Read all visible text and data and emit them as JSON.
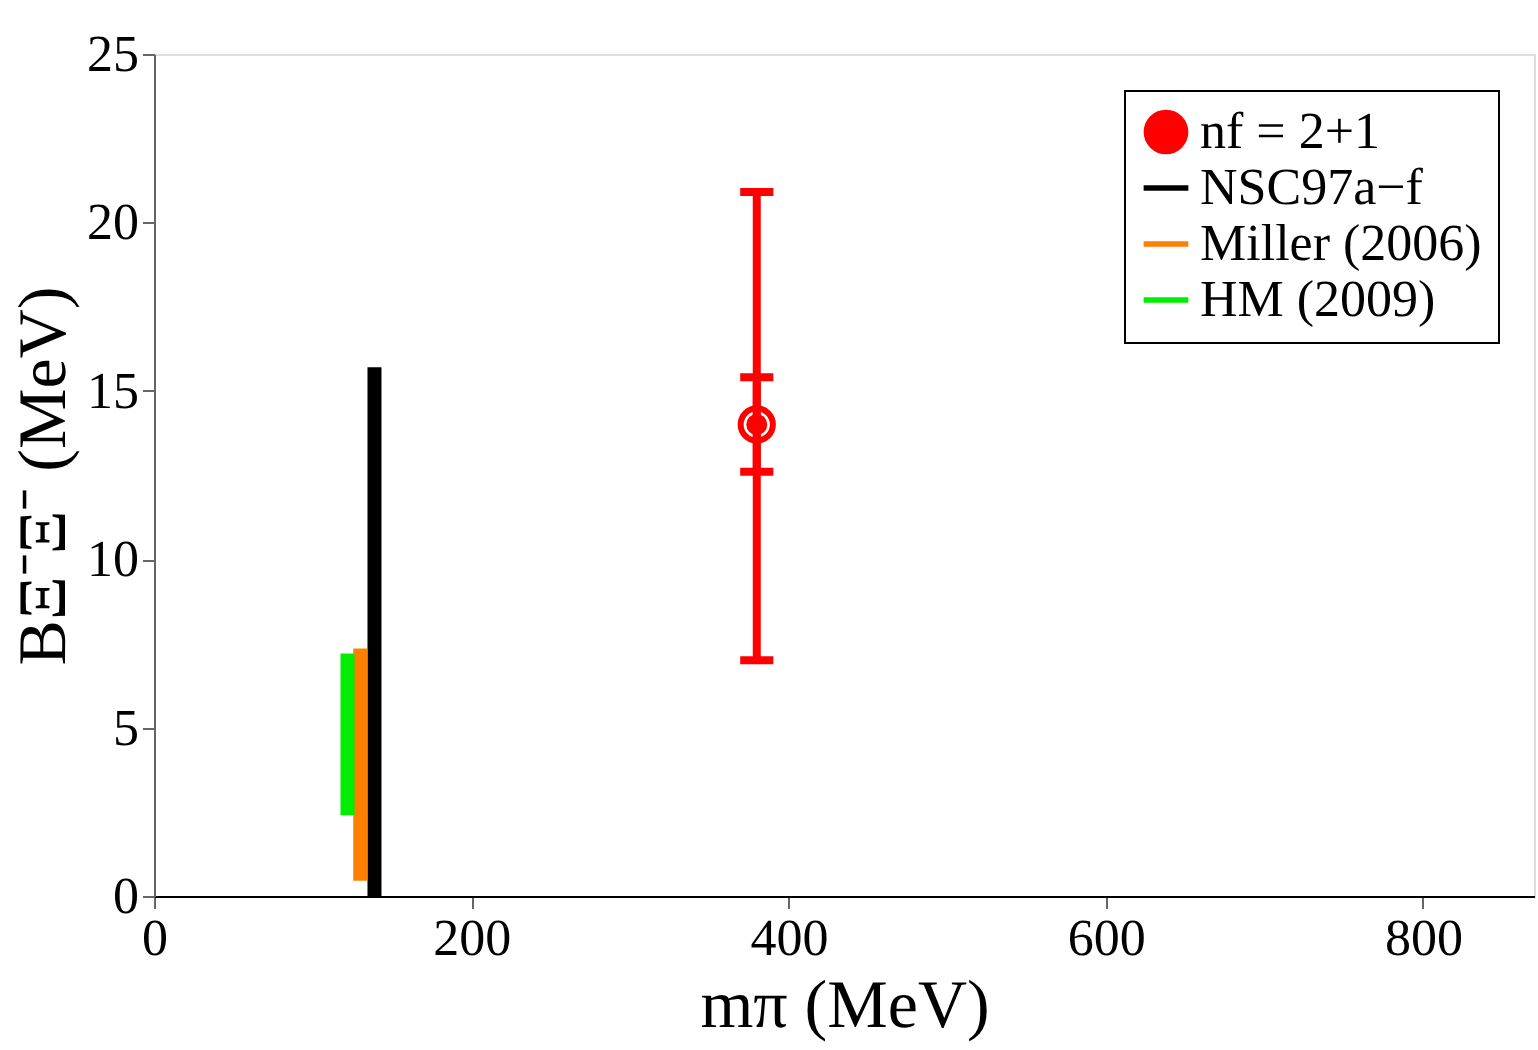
{
  "chart_data": {
    "type": "scatter",
    "xlabel": "mπ (MeV)",
    "ylabel": "BΞ⁻Ξ⁻ (MeV)",
    "xlim": [
      0,
      870
    ],
    "xticks": [
      0,
      200,
      400,
      600,
      800
    ],
    "ylim": [
      0,
      25
    ],
    "yticks": [
      0,
      5,
      10,
      15,
      20,
      25
    ],
    "grid": false,
    "legend": "top right",
    "series": [
      {
        "name": "nf = 2+1",
        "marker": "circle",
        "color": "#ff0000",
        "x": [
          380
        ],
        "values": [
          14
        ],
        "errors": [
          [
            7.0,
            20.9
          ]
        ]
      },
      {
        "marker": "circle",
        "color": "#ff0000",
        "x": [
          380
        ],
        "values": [
          14
        ],
        "errors": [
          [
            12.6,
            15.4
          ]
        ]
      },
      {
        "name": "NSC97a−f",
        "type": "bar",
        "color": "#000000",
        "x": [
          139
        ],
        "base": [
          0
        ],
        "values": [
          15.7
        ]
      },
      {
        "name": "Miller (2006)",
        "type": "bar",
        "color": "#ff8000",
        "x": [
          130
        ],
        "base": [
          0.45
        ],
        "values": [
          6.9
        ]
      },
      {
        "name": "HM (2009)",
        "type": "bar",
        "color": "#00ee00",
        "x": [
          122
        ],
        "base": [
          2.4
        ],
        "values": [
          4.8
        ]
      }
    ]
  }
}
